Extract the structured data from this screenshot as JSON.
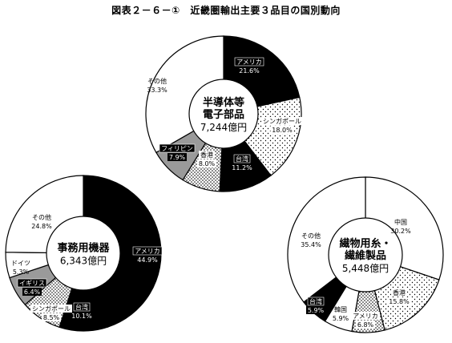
{
  "title": "図表２－６－①　近畿圏輸出主要３品目の国別動向",
  "chart_data": [
    {
      "type": "pie",
      "title": "半導体等電子部品",
      "name_lines": [
        "半導体等",
        "電子部品"
      ],
      "total": "7,244億円",
      "slices": [
        {
          "label": "アメリカ",
          "value": 21.6,
          "value_text": "21.6%",
          "fill": "black"
        },
        {
          "label": "シンガポール",
          "value": 18.0,
          "value_text": "18.0%",
          "fill": "dots-light"
        },
        {
          "label": "台湾",
          "value": 11.2,
          "value_text": "11.2%",
          "fill": "black"
        },
        {
          "label": "香港",
          "value": 8.0,
          "value_text": "8.0%",
          "fill": "dots-dense"
        },
        {
          "label": "フィリピン",
          "value": 7.9,
          "value_text": "7.9%",
          "fill": "gray"
        },
        {
          "label": "その他",
          "value": 33.3,
          "value_text": "33.3%",
          "fill": "white"
        }
      ]
    },
    {
      "type": "pie",
      "title": "事務用機器",
      "name_lines": [
        "事務用機器"
      ],
      "total": "6,343億円",
      "slices": [
        {
          "label": "アメリカ",
          "value": 44.9,
          "value_text": "44.9%",
          "fill": "black"
        },
        {
          "label": "台湾",
          "value": 10.1,
          "value_text": "10.1%",
          "fill": "black"
        },
        {
          "label": "シンガポール",
          "value": 8.5,
          "value_text": "8.5%",
          "fill": "dots-dense"
        },
        {
          "label": "イギリス",
          "value": 6.4,
          "value_text": "6.4%",
          "fill": "gray"
        },
        {
          "label": "ドイツ",
          "value": 5.3,
          "value_text": "5.3%",
          "fill": "white"
        },
        {
          "label": "その他",
          "value": 24.8,
          "value_text": "24.8%",
          "fill": "white"
        }
      ]
    },
    {
      "type": "pie",
      "title": "繊物用糸・繊維製品",
      "name_lines": [
        "繊物用糸・",
        "繊維製品"
      ],
      "total": "5,448億円",
      "slices": [
        {
          "label": "中国",
          "value": 30.2,
          "value_text": "30.2%",
          "fill": "white"
        },
        {
          "label": "香港",
          "value": 15.8,
          "value_text": "15.8%",
          "fill": "dots-light"
        },
        {
          "label": "アメリカ",
          "value": 6.8,
          "value_text": "6.8%",
          "fill": "dots-dense"
        },
        {
          "label": "韓国",
          "value": 5.9,
          "value_text": "5.9%",
          "fill": "white"
        },
        {
          "label": "台湾",
          "value": 5.9,
          "value_text": "5.9%",
          "fill": "black"
        },
        {
          "label": "その他",
          "value": 35.4,
          "value_text": "35.4%",
          "fill": "white"
        }
      ]
    }
  ]
}
